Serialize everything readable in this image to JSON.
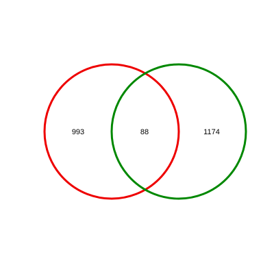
{
  "diagram": {
    "type": "venn",
    "sets": [
      {
        "id": "set-a",
        "color": "#ee0000"
      },
      {
        "id": "set-b",
        "color": "#008800"
      }
    ],
    "counts": {
      "left_only": "993",
      "intersection": "88",
      "right_only": "1174"
    }
  }
}
